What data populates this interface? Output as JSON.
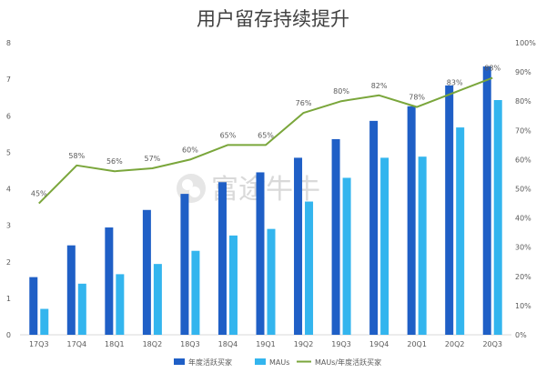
{
  "colors": {
    "annual_active_buyers": "#1f5fc6",
    "maus": "#33b5ee",
    "ratio": "#7aa63b",
    "axis_text": "#595959"
  },
  "watermark": {
    "text": "富途牛牛"
  },
  "chart_data": {
    "type": "bar",
    "title": "用户留存持续提升",
    "categories": [
      "17Q3",
      "17Q4",
      "18Q1",
      "18Q2",
      "18Q3",
      "18Q4",
      "19Q1",
      "19Q2",
      "19Q3",
      "19Q4",
      "20Q1",
      "20Q2",
      "20Q3"
    ],
    "series": [
      {
        "name": "年度活跃买家",
        "type": "bar",
        "axis": "left",
        "values": [
          1.58,
          2.45,
          2.94,
          3.42,
          3.86,
          4.18,
          4.45,
          4.85,
          5.36,
          5.86,
          6.26,
          6.83,
          7.35
        ]
      },
      {
        "name": "MAUs",
        "type": "bar",
        "axis": "left",
        "values": [
          0.71,
          1.4,
          1.66,
          1.94,
          2.3,
          2.72,
          2.9,
          3.65,
          4.3,
          4.85,
          4.88,
          5.68,
          6.43
        ]
      },
      {
        "name": "MAUs/年度活跃买家",
        "type": "line",
        "axis": "right",
        "values": [
          45,
          58,
          56,
          57,
          60,
          65,
          65,
          76,
          80,
          82,
          78,
          83,
          88
        ],
        "labels": [
          "45%",
          "58%",
          "56%",
          "57%",
          "60%",
          "65%",
          "65%",
          "76%",
          "80%",
          "82%",
          "78%",
          "83%",
          "88%"
        ]
      }
    ],
    "y_left": {
      "min": 0,
      "max": 8,
      "ticks": [
        "0",
        "1",
        "2",
        "3",
        "4",
        "5",
        "6",
        "7",
        "8"
      ]
    },
    "y_right": {
      "min": 0,
      "max": 100,
      "ticks": [
        "0%",
        "10%",
        "20%",
        "30%",
        "40%",
        "50%",
        "60%",
        "70%",
        "80%",
        "90%",
        "100%"
      ]
    },
    "grid": false,
    "legend_position": "bottom"
  }
}
